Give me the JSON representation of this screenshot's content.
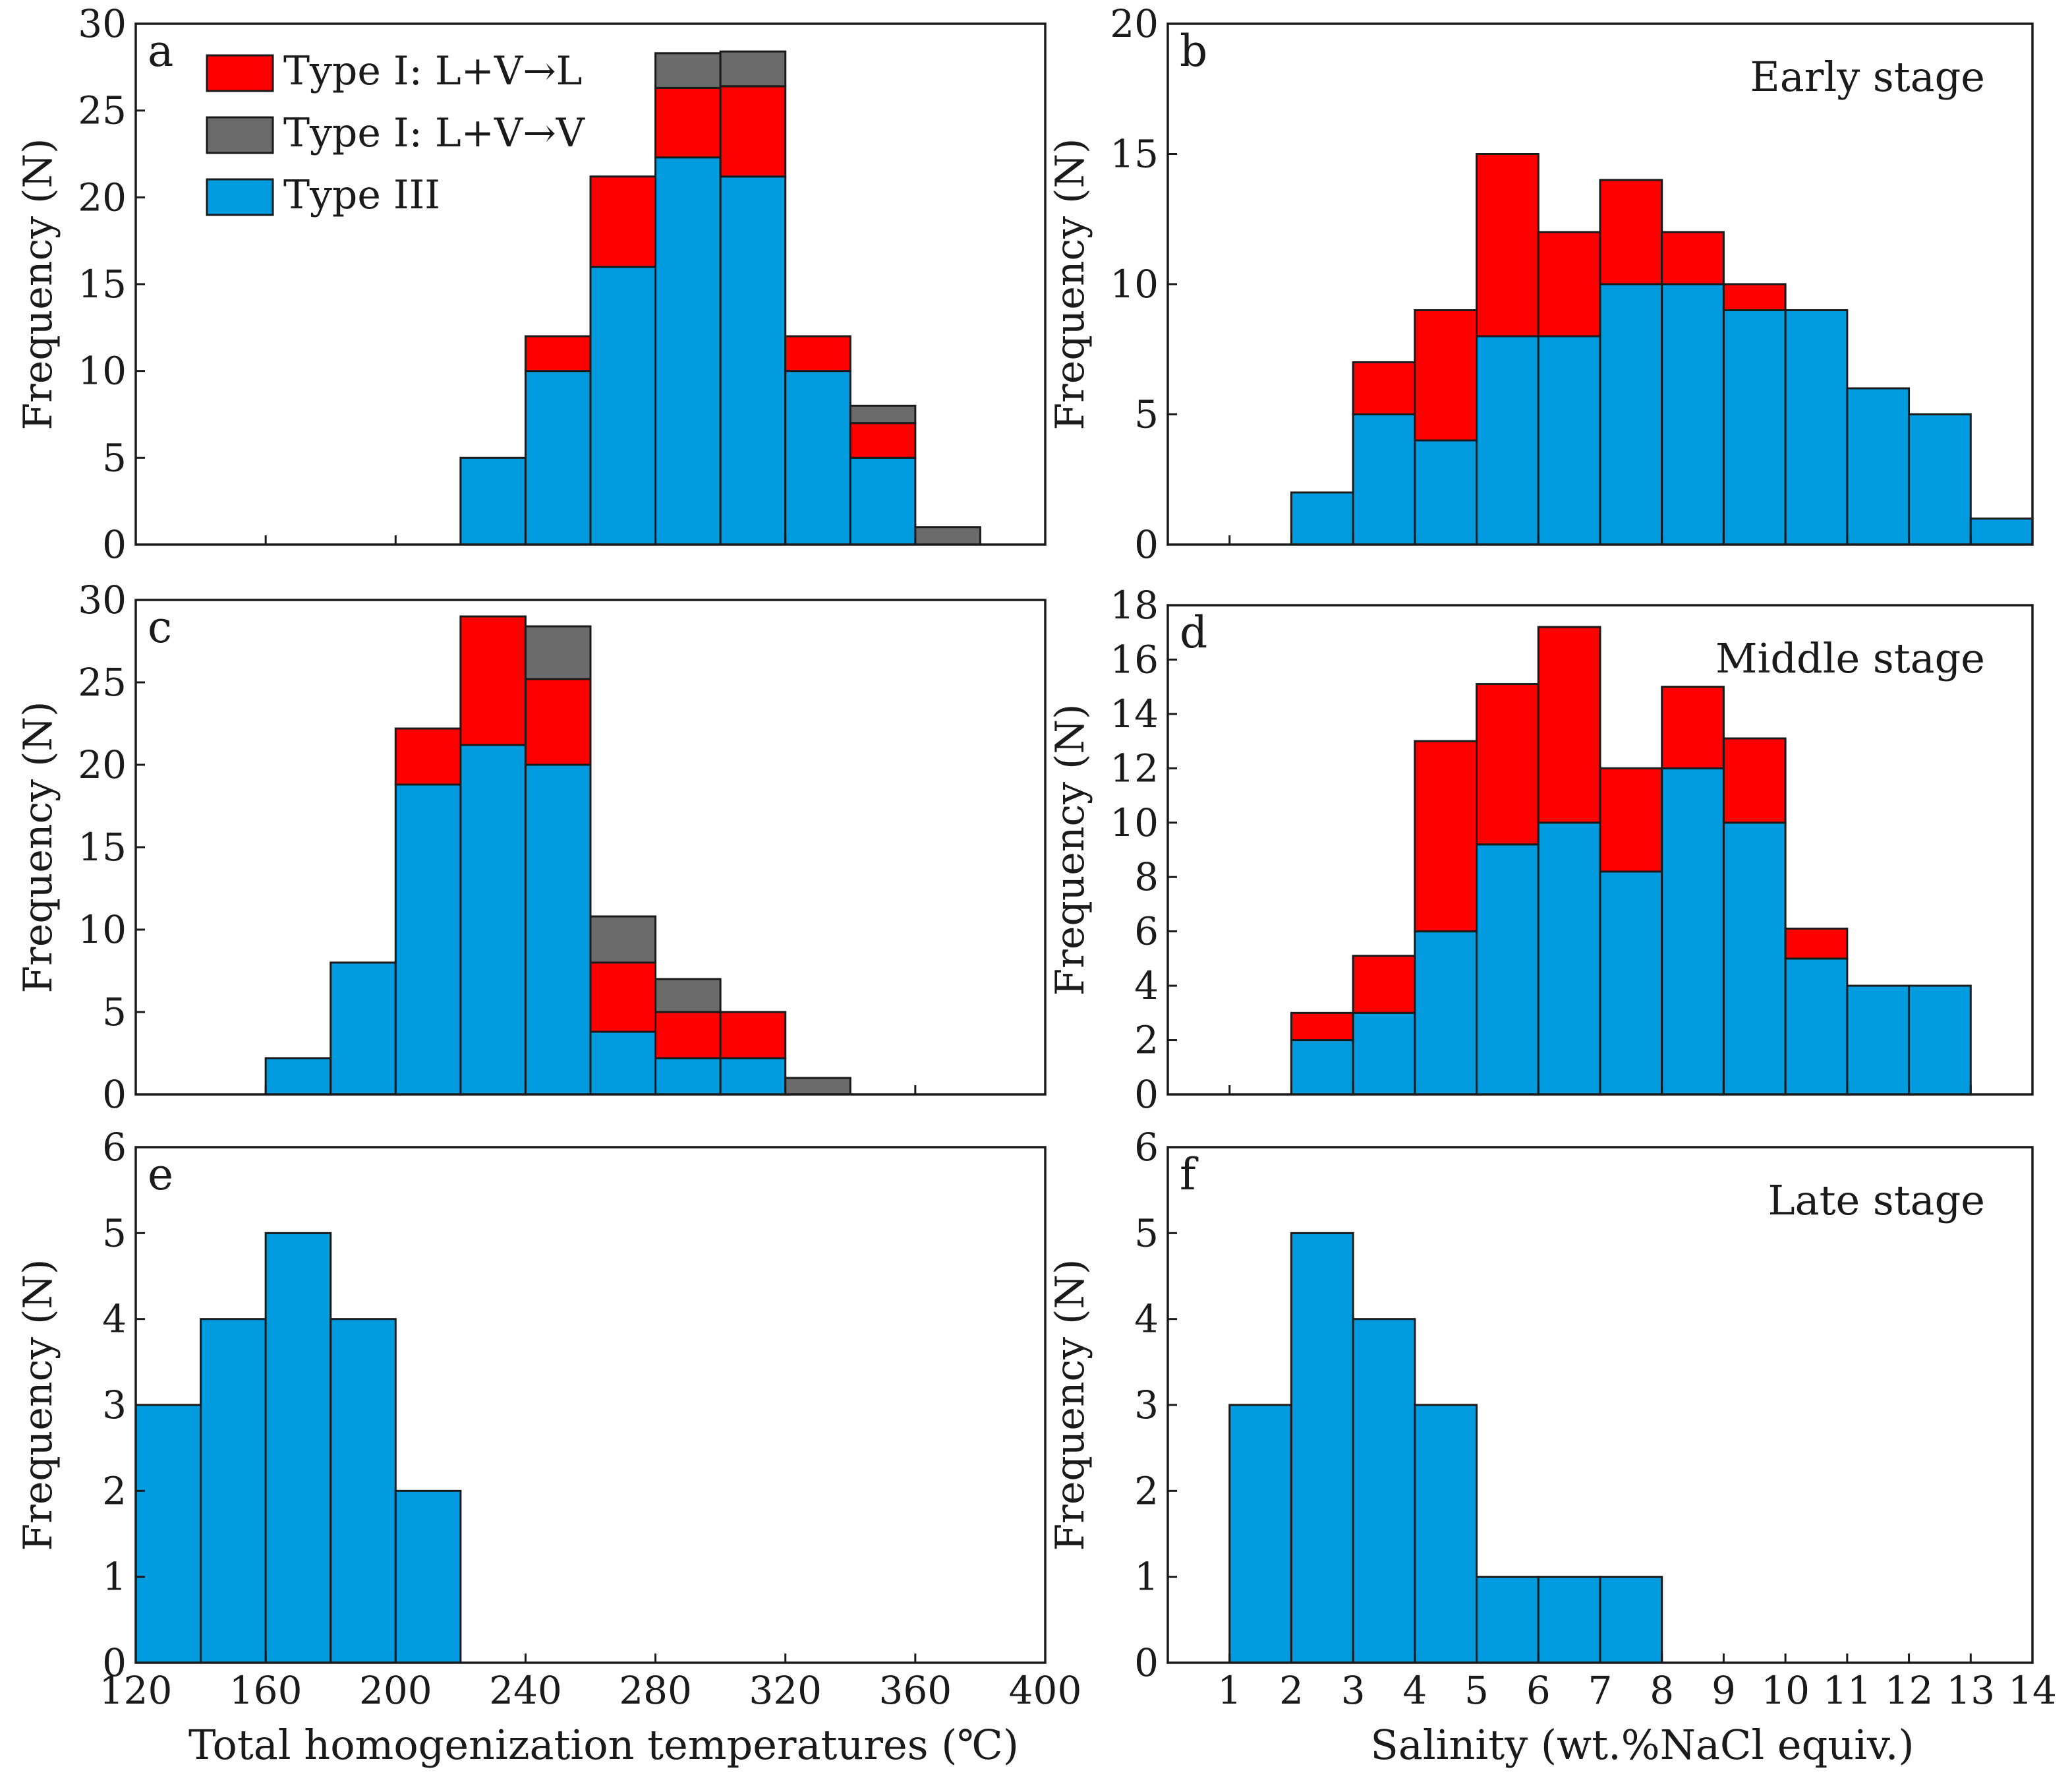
{
  "colors": {
    "type_i_l": "#fe0000",
    "type_i_v": "#6b6b6b",
    "type_iii": "#019ce0",
    "frame": "#1a1a1a"
  },
  "legend": [
    {
      "key": "type_i_l",
      "label": "Type I: L+V→L"
    },
    {
      "key": "type_i_v",
      "label": "Type I: L+V→V"
    },
    {
      "key": "type_iii",
      "label": "Type III"
    }
  ],
  "x_labels": {
    "temperature": "Total homogenization temperatures (℃)",
    "salinity": "Salinity (wt.%NaCl equiv.)"
  },
  "chart_data": [
    {
      "id": "a",
      "panel_label": "a",
      "type": "bar",
      "stacked": true,
      "stage": "",
      "xlabel": "",
      "ylabel": "Frequency (N)",
      "bin_edges": [
        120,
        140,
        160,
        180,
        200,
        220,
        240,
        260,
        280,
        300,
        320,
        340,
        360,
        380,
        400
      ],
      "x_ticks": [
        120,
        160,
        200,
        240,
        280,
        320,
        360,
        400
      ],
      "show_x_ticks": false,
      "ylim": [
        0,
        30
      ],
      "y_ticks": [
        0,
        5,
        10,
        15,
        20,
        25,
        30
      ],
      "series": [
        {
          "key": "type_iii",
          "name": "Type III",
          "values": [
            0,
            0,
            0,
            0,
            0,
            5,
            10,
            16,
            22.3,
            21.2,
            10,
            5,
            0,
            0
          ]
        },
        {
          "key": "type_i_l",
          "name": "Type I: L+V→L",
          "values": [
            0,
            0,
            0,
            0,
            0,
            0,
            2,
            5.2,
            4,
            5.2,
            2,
            2,
            0,
            0
          ]
        },
        {
          "key": "type_i_v",
          "name": "Type I: L+V→V",
          "values": [
            0,
            0,
            0,
            0,
            0,
            0,
            0,
            0,
            2,
            2,
            0,
            1,
            1,
            0
          ]
        }
      ]
    },
    {
      "id": "b",
      "panel_label": "b",
      "type": "bar",
      "stacked": true,
      "stage": "Early stage",
      "xlabel": "",
      "ylabel": "Frequency (N)",
      "bin_edges": [
        0,
        1,
        2,
        3,
        4,
        5,
        6,
        7,
        8,
        9,
        10,
        11,
        12,
        13,
        14
      ],
      "x_ticks": [
        1,
        2,
        3,
        4,
        5,
        6,
        7,
        8,
        9,
        10,
        11,
        12,
        13,
        14
      ],
      "show_x_ticks": false,
      "ylim": [
        0,
        20
      ],
      "y_ticks": [
        0,
        5,
        10,
        15,
        20
      ],
      "series": [
        {
          "key": "type_iii",
          "name": "Type III",
          "values": [
            0,
            0,
            2,
            5,
            4,
            8,
            8,
            10,
            10,
            9,
            9,
            6,
            5,
            1
          ]
        },
        {
          "key": "type_i_l",
          "name": "Type I: L+V→L",
          "values": [
            0,
            0,
            0,
            2,
            5,
            7,
            4,
            4,
            2,
            1,
            0,
            0,
            0,
            0
          ]
        }
      ]
    },
    {
      "id": "c",
      "panel_label": "c",
      "type": "bar",
      "stacked": true,
      "stage": "",
      "xlabel": "",
      "ylabel": "Frequency (N)",
      "bin_edges": [
        120,
        140,
        160,
        180,
        200,
        220,
        240,
        260,
        280,
        300,
        320,
        340,
        360,
        380,
        400
      ],
      "x_ticks": [
        120,
        160,
        200,
        240,
        280,
        320,
        360,
        400
      ],
      "show_x_ticks": false,
      "ylim": [
        0,
        30
      ],
      "y_ticks": [
        0,
        5,
        10,
        15,
        20,
        25,
        30
      ],
      "series": [
        {
          "key": "type_iii",
          "name": "Type III",
          "values": [
            0,
            0,
            2.2,
            8,
            18.8,
            21.2,
            20,
            3.8,
            2.2,
            2.2,
            0,
            0,
            0,
            0
          ]
        },
        {
          "key": "type_i_l",
          "name": "Type I: L+V→L",
          "values": [
            0,
            0,
            0,
            0,
            3.4,
            7.8,
            5.2,
            4.2,
            2.8,
            2.8,
            0,
            0,
            0,
            0
          ]
        },
        {
          "key": "type_i_v",
          "name": "Type I: L+V→V",
          "values": [
            0,
            0,
            0,
            0,
            0,
            0,
            3.2,
            2.8,
            2,
            0,
            1,
            0,
            0,
            0
          ]
        }
      ]
    },
    {
      "id": "d",
      "panel_label": "d",
      "type": "bar",
      "stacked": true,
      "stage": "Middle stage",
      "xlabel": "",
      "ylabel": "Frequency (N)",
      "bin_edges": [
        0,
        1,
        2,
        3,
        4,
        5,
        6,
        7,
        8,
        9,
        10,
        11,
        12,
        13,
        14
      ],
      "x_ticks": [
        1,
        2,
        3,
        4,
        5,
        6,
        7,
        8,
        9,
        10,
        11,
        12,
        13,
        14
      ],
      "show_x_ticks": false,
      "ylim": [
        0,
        18
      ],
      "y_ticks": [
        0,
        2,
        4,
        6,
        8,
        10,
        12,
        14,
        16,
        18
      ],
      "series": [
        {
          "key": "type_iii",
          "name": "Type III",
          "values": [
            0,
            0,
            2,
            3,
            6,
            9.2,
            10,
            8.2,
            12,
            10,
            5,
            4,
            4,
            0
          ]
        },
        {
          "key": "type_i_l",
          "name": "Type I: L+V→L",
          "values": [
            0,
            0,
            1,
            2.1,
            7,
            5.9,
            7.2,
            3.8,
            3,
            3.1,
            1.1,
            0,
            0,
            0
          ]
        }
      ]
    },
    {
      "id": "e",
      "panel_label": "e",
      "type": "bar",
      "stacked": true,
      "stage": "",
      "xlabel": "Total homogenization temperatures (℃)",
      "ylabel": "Frequency (N)",
      "bin_edges": [
        120,
        140,
        160,
        180,
        200,
        220,
        240,
        260,
        280,
        300,
        320,
        340,
        360,
        380,
        400
      ],
      "x_ticks": [
        120,
        160,
        200,
        240,
        280,
        320,
        360,
        400
      ],
      "show_x_ticks": true,
      "ylim": [
        0,
        6
      ],
      "y_ticks": [
        0,
        1,
        2,
        3,
        4,
        5,
        6
      ],
      "series": [
        {
          "key": "type_iii",
          "name": "Type III",
          "values": [
            3,
            4,
            5,
            4,
            2,
            0,
            0,
            0,
            0,
            0,
            0,
            0,
            0,
            0
          ]
        }
      ]
    },
    {
      "id": "f",
      "panel_label": "f",
      "type": "bar",
      "stacked": true,
      "stage": "Late stage",
      "xlabel": "Salinity (wt.%NaCl equiv.)",
      "ylabel": "Frequency (N)",
      "bin_edges": [
        0,
        1,
        2,
        3,
        4,
        5,
        6,
        7,
        8,
        9,
        10,
        11,
        12,
        13,
        14
      ],
      "x_ticks": [
        1,
        2,
        3,
        4,
        5,
        6,
        7,
        8,
        9,
        10,
        11,
        12,
        13,
        14
      ],
      "show_x_ticks": true,
      "ylim": [
        0,
        6
      ],
      "y_ticks": [
        0,
        1,
        2,
        3,
        4,
        5,
        6
      ],
      "series": [
        {
          "key": "type_iii",
          "name": "Type III",
          "values": [
            0,
            3,
            5,
            4,
            3,
            1,
            1,
            1,
            0,
            0,
            0,
            0,
            0,
            0
          ]
        }
      ]
    }
  ]
}
